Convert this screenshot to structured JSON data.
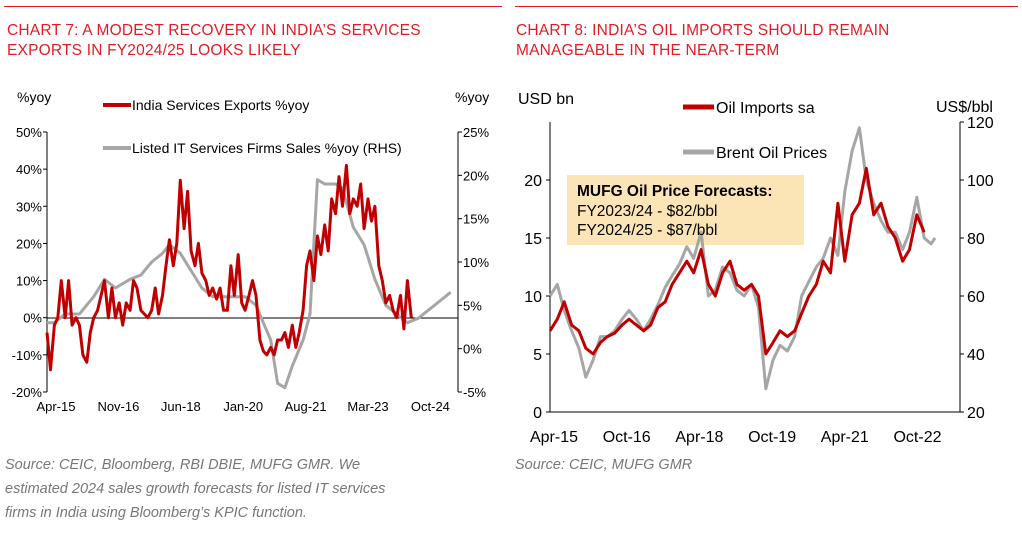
{
  "left": {
    "title_lines": [
      "CHART 7: A MODEST RECOVERY IN INDIA’S SERVICES",
      "EXPORTS IN FY2024/25 LOOKS LIKELY"
    ],
    "source_lines": [
      "Source: CEIC, Bloomberg, RBI DBIE, MUFG GMR.  We",
      "estimated 2024 sales growth forecasts for listed IT services",
      "firms in India using Bloomberg’s KPIC function."
    ]
  },
  "right": {
    "title_lines": [
      "CHART 8: INDIA’S OIL IMPORTS SHOULD REMAIN",
      "MANAGEABLE IN THE NEAR-TERM"
    ],
    "source_lines": [
      "Source: CEIC, MUFG GMR"
    ],
    "forecast_box": {
      "heading": "MUFG Oil Price Forecasts:",
      "line1": "FY2023/24 - $82/bbl",
      "line2": "FY2024/25 - $87/bbl"
    }
  },
  "colors": {
    "red": "#c00000",
    "grey": "#a6a6a6",
    "title_red": "#e31b23",
    "box": "#fbe4b5"
  },
  "chart_data": [
    {
      "type": "line",
      "ylabel": "%yoy",
      "y2label": "%yoy",
      "ylim": [
        -20,
        50
      ],
      "y2lim": [
        -5,
        25
      ],
      "yticks": [
        "50%",
        "40%",
        "30%",
        "20%",
        "10%",
        "0%",
        "-10%",
        "-20%"
      ],
      "y2ticks": [
        "25%",
        "20%",
        "15%",
        "10%",
        "5%",
        "0%",
        "-5%"
      ],
      "xticks": [
        "Apr-15",
        "Nov-16",
        "Jun-18",
        "Jan-20",
        "Aug-21",
        "Mar-23",
        "Oct-24"
      ],
      "legend_position": "top",
      "series": [
        {
          "name": "India Services Exports %yoy",
          "axis": "left",
          "points": [
            [
              2015.25,
              -4
            ],
            [
              2015.33,
              -14
            ],
            [
              2015.42,
              -2
            ],
            [
              2015.5,
              0
            ],
            [
              2015.58,
              10
            ],
            [
              2015.67,
              0
            ],
            [
              2015.75,
              10
            ],
            [
              2015.83,
              -2
            ],
            [
              2015.92,
              0
            ],
            [
              2016.0,
              -2
            ],
            [
              2016.08,
              -10
            ],
            [
              2016.17,
              -12
            ],
            [
              2016.25,
              -4
            ],
            [
              2016.33,
              0
            ],
            [
              2016.42,
              2
            ],
            [
              2016.5,
              6
            ],
            [
              2016.58,
              10
            ],
            [
              2016.67,
              0
            ],
            [
              2016.75,
              8
            ],
            [
              2016.83,
              0
            ],
            [
              2016.92,
              4
            ],
            [
              2017.0,
              -2
            ],
            [
              2017.08,
              4
            ],
            [
              2017.17,
              2
            ],
            [
              2017.25,
              10
            ],
            [
              2017.33,
              8
            ],
            [
              2017.42,
              2
            ],
            [
              2017.5,
              1
            ],
            [
              2017.58,
              0
            ],
            [
              2017.67,
              2
            ],
            [
              2017.75,
              8
            ],
            [
              2017.83,
              1
            ],
            [
              2017.92,
              6
            ],
            [
              2018.0,
              14
            ],
            [
              2018.08,
              21
            ],
            [
              2018.17,
              14
            ],
            [
              2018.25,
              20
            ],
            [
              2018.33,
              37
            ],
            [
              2018.42,
              24
            ],
            [
              2018.5,
              34
            ],
            [
              2018.58,
              18
            ],
            [
              2018.67,
              14
            ],
            [
              2018.75,
              20
            ],
            [
              2018.83,
              12
            ],
            [
              2018.92,
              10
            ],
            [
              2019.0,
              6
            ],
            [
              2019.08,
              8
            ],
            [
              2019.17,
              5
            ],
            [
              2019.25,
              8
            ],
            [
              2019.33,
              2
            ],
            [
              2019.42,
              2
            ],
            [
              2019.5,
              14
            ],
            [
              2019.58,
              6
            ],
            [
              2019.67,
              17
            ],
            [
              2019.75,
              4
            ],
            [
              2019.83,
              2
            ],
            [
              2019.92,
              6
            ],
            [
              2020.0,
              10
            ],
            [
              2020.08,
              6
            ],
            [
              2020.17,
              -6
            ],
            [
              2020.25,
              -9
            ],
            [
              2020.33,
              -10
            ],
            [
              2020.42,
              -8
            ],
            [
              2020.5,
              -10
            ],
            [
              2020.58,
              -6
            ],
            [
              2020.67,
              -6
            ],
            [
              2020.75,
              -4
            ],
            [
              2020.83,
              -8
            ],
            [
              2020.92,
              -2
            ],
            [
              2021.0,
              -8
            ],
            [
              2021.08,
              -4
            ],
            [
              2021.17,
              2
            ],
            [
              2021.25,
              14
            ],
            [
              2021.33,
              18
            ],
            [
              2021.42,
              10
            ],
            [
              2021.5,
              22
            ],
            [
              2021.58,
              17
            ],
            [
              2021.67,
              25
            ],
            [
              2021.75,
              18
            ],
            [
              2021.83,
              32
            ],
            [
              2021.92,
              28
            ],
            [
              2022.0,
              38
            ],
            [
              2022.08,
              30
            ],
            [
              2022.17,
              41
            ],
            [
              2022.25,
              28
            ],
            [
              2022.33,
              32
            ],
            [
              2022.42,
              30
            ],
            [
              2022.5,
              36
            ],
            [
              2022.58,
              24
            ],
            [
              2022.67,
              32
            ],
            [
              2022.75,
              26
            ],
            [
              2022.83,
              30
            ],
            [
              2022.92,
              14
            ],
            [
              2023.0,
              10
            ],
            [
              2023.08,
              4
            ],
            [
              2023.17,
              6
            ],
            [
              2023.25,
              2
            ],
            [
              2023.33,
              0
            ],
            [
              2023.42,
              6
            ],
            [
              2023.5,
              -3
            ],
            [
              2023.58,
              10
            ],
            [
              2023.67,
              0
            ]
          ]
        },
        {
          "name": "Listed IT Services Firms Sales %yoy (RHS)",
          "axis": "right",
          "points": [
            [
              2015.25,
              3
            ],
            [
              2015.42,
              3
            ],
            [
              2015.67,
              4
            ],
            [
              2016.0,
              4
            ],
            [
              2016.33,
              6
            ],
            [
              2016.58,
              8
            ],
            [
              2016.83,
              7
            ],
            [
              2017.17,
              8
            ],
            [
              2017.42,
              8.5
            ],
            [
              2017.67,
              10
            ],
            [
              2017.92,
              11
            ],
            [
              2018.08,
              12
            ],
            [
              2018.33,
              11
            ],
            [
              2018.58,
              9
            ],
            [
              2018.83,
              7
            ],
            [
              2019.08,
              6
            ],
            [
              2019.33,
              6
            ],
            [
              2019.58,
              6
            ],
            [
              2019.83,
              6
            ],
            [
              2020.08,
              5
            ],
            [
              2020.42,
              1
            ],
            [
              2020.58,
              -4
            ],
            [
              2020.75,
              -4.5
            ],
            [
              2020.92,
              -2
            ],
            [
              2021.17,
              1
            ],
            [
              2021.33,
              4
            ],
            [
              2021.5,
              19.5
            ],
            [
              2021.67,
              19
            ],
            [
              2021.92,
              19
            ],
            [
              2022.08,
              18.5
            ],
            [
              2022.33,
              14
            ],
            [
              2022.58,
              12
            ],
            [
              2022.83,
              8
            ],
            [
              2023.08,
              5
            ],
            [
              2023.33,
              4
            ],
            [
              2023.58,
              3
            ],
            [
              2023.83,
              3.5
            ],
            [
              2024.08,
              4.5
            ],
            [
              2024.33,
              5.5
            ],
            [
              2024.58,
              6.5
            ]
          ]
        }
      ]
    },
    {
      "type": "line",
      "ylabel": "USD bn",
      "y2label": "US$/bbl",
      "ylim": [
        0,
        25
      ],
      "y2lim": [
        20,
        120
      ],
      "yticks": [
        "20",
        "15",
        "10",
        "5",
        "0"
      ],
      "y2ticks": [
        "120",
        "100",
        "80",
        "60",
        "40",
        "20"
      ],
      "xticks": [
        "Apr-15",
        "Oct-16",
        "Apr-18",
        "Oct-19",
        "Apr-21",
        "Oct-22"
      ],
      "legend_position": "top-center",
      "series": [
        {
          "name": "Oil Imports sa",
          "axis": "left",
          "points": [
            [
              2015.25,
              7
            ],
            [
              2015.42,
              8
            ],
            [
              2015.58,
              9.5
            ],
            [
              2015.75,
              7.5
            ],
            [
              2015.92,
              7
            ],
            [
              2016.08,
              5.5
            ],
            [
              2016.25,
              5
            ],
            [
              2016.42,
              6
            ],
            [
              2016.58,
              6.5
            ],
            [
              2016.75,
              6.8
            ],
            [
              2016.92,
              7.5
            ],
            [
              2017.08,
              8
            ],
            [
              2017.25,
              7.5
            ],
            [
              2017.42,
              7
            ],
            [
              2017.58,
              7.5
            ],
            [
              2017.75,
              9
            ],
            [
              2017.92,
              9.5
            ],
            [
              2018.08,
              11
            ],
            [
              2018.25,
              12
            ],
            [
              2018.42,
              13
            ],
            [
              2018.58,
              12
            ],
            [
              2018.75,
              14
            ],
            [
              2018.92,
              11
            ],
            [
              2019.08,
              10
            ],
            [
              2019.25,
              12
            ],
            [
              2019.42,
              13
            ],
            [
              2019.58,
              11
            ],
            [
              2019.75,
              10.5
            ],
            [
              2019.92,
              11
            ],
            [
              2020.08,
              10
            ],
            [
              2020.25,
              5
            ],
            [
              2020.42,
              6
            ],
            [
              2020.58,
              7
            ],
            [
              2020.75,
              6.5
            ],
            [
              2020.92,
              7
            ],
            [
              2021.08,
              8.5
            ],
            [
              2021.25,
              10
            ],
            [
              2021.42,
              11
            ],
            [
              2021.58,
              13
            ],
            [
              2021.75,
              12
            ],
            [
              2021.92,
              18
            ],
            [
              2022.08,
              13
            ],
            [
              2022.25,
              17
            ],
            [
              2022.42,
              18
            ],
            [
              2022.58,
              21
            ],
            [
              2022.75,
              17
            ],
            [
              2022.92,
              18
            ],
            [
              2023.08,
              16
            ],
            [
              2023.25,
              15
            ],
            [
              2023.42,
              13
            ],
            [
              2023.58,
              14
            ],
            [
              2023.75,
              17
            ],
            [
              2023.92,
              15.5
            ]
          ]
        },
        {
          "name": "Brent Oil Prices",
          "axis": "right",
          "points": [
            [
              2015.25,
              60
            ],
            [
              2015.42,
              64
            ],
            [
              2015.58,
              55
            ],
            [
              2015.75,
              48
            ],
            [
              2015.92,
              42
            ],
            [
              2016.08,
              32
            ],
            [
              2016.25,
              38
            ],
            [
              2016.42,
              46
            ],
            [
              2016.58,
              46
            ],
            [
              2016.75,
              48
            ],
            [
              2016.92,
              52
            ],
            [
              2017.08,
              55
            ],
            [
              2017.25,
              52
            ],
            [
              2017.42,
              48
            ],
            [
              2017.58,
              52
            ],
            [
              2017.75,
              57
            ],
            [
              2017.92,
              63
            ],
            [
              2018.08,
              67
            ],
            [
              2018.25,
              71
            ],
            [
              2018.42,
              77
            ],
            [
              2018.58,
              73
            ],
            [
              2018.75,
              82
            ],
            [
              2018.92,
              60
            ],
            [
              2019.08,
              62
            ],
            [
              2019.25,
              70
            ],
            [
              2019.42,
              68
            ],
            [
              2019.58,
              62
            ],
            [
              2019.75,
              60
            ],
            [
              2019.92,
              64
            ],
            [
              2020.08,
              56
            ],
            [
              2020.25,
              28
            ],
            [
              2020.42,
              38
            ],
            [
              2020.58,
              43
            ],
            [
              2020.75,
              41
            ],
            [
              2020.92,
              46
            ],
            [
              2021.08,
              60
            ],
            [
              2021.25,
              65
            ],
            [
              2021.42,
              70
            ],
            [
              2021.58,
              73
            ],
            [
              2021.75,
              80
            ],
            [
              2021.92,
              74
            ],
            [
              2022.08,
              96
            ],
            [
              2022.25,
              110
            ],
            [
              2022.42,
              118
            ],
            [
              2022.58,
              100
            ],
            [
              2022.75,
              92
            ],
            [
              2022.92,
              86
            ],
            [
              2023.08,
              82
            ],
            [
              2023.25,
              82
            ],
            [
              2023.42,
              76
            ],
            [
              2023.58,
              82
            ],
            [
              2023.75,
              94
            ],
            [
              2023.92,
              80
            ],
            [
              2024.08,
              78
            ],
            [
              2024.17,
              80
            ]
          ]
        }
      ]
    }
  ]
}
